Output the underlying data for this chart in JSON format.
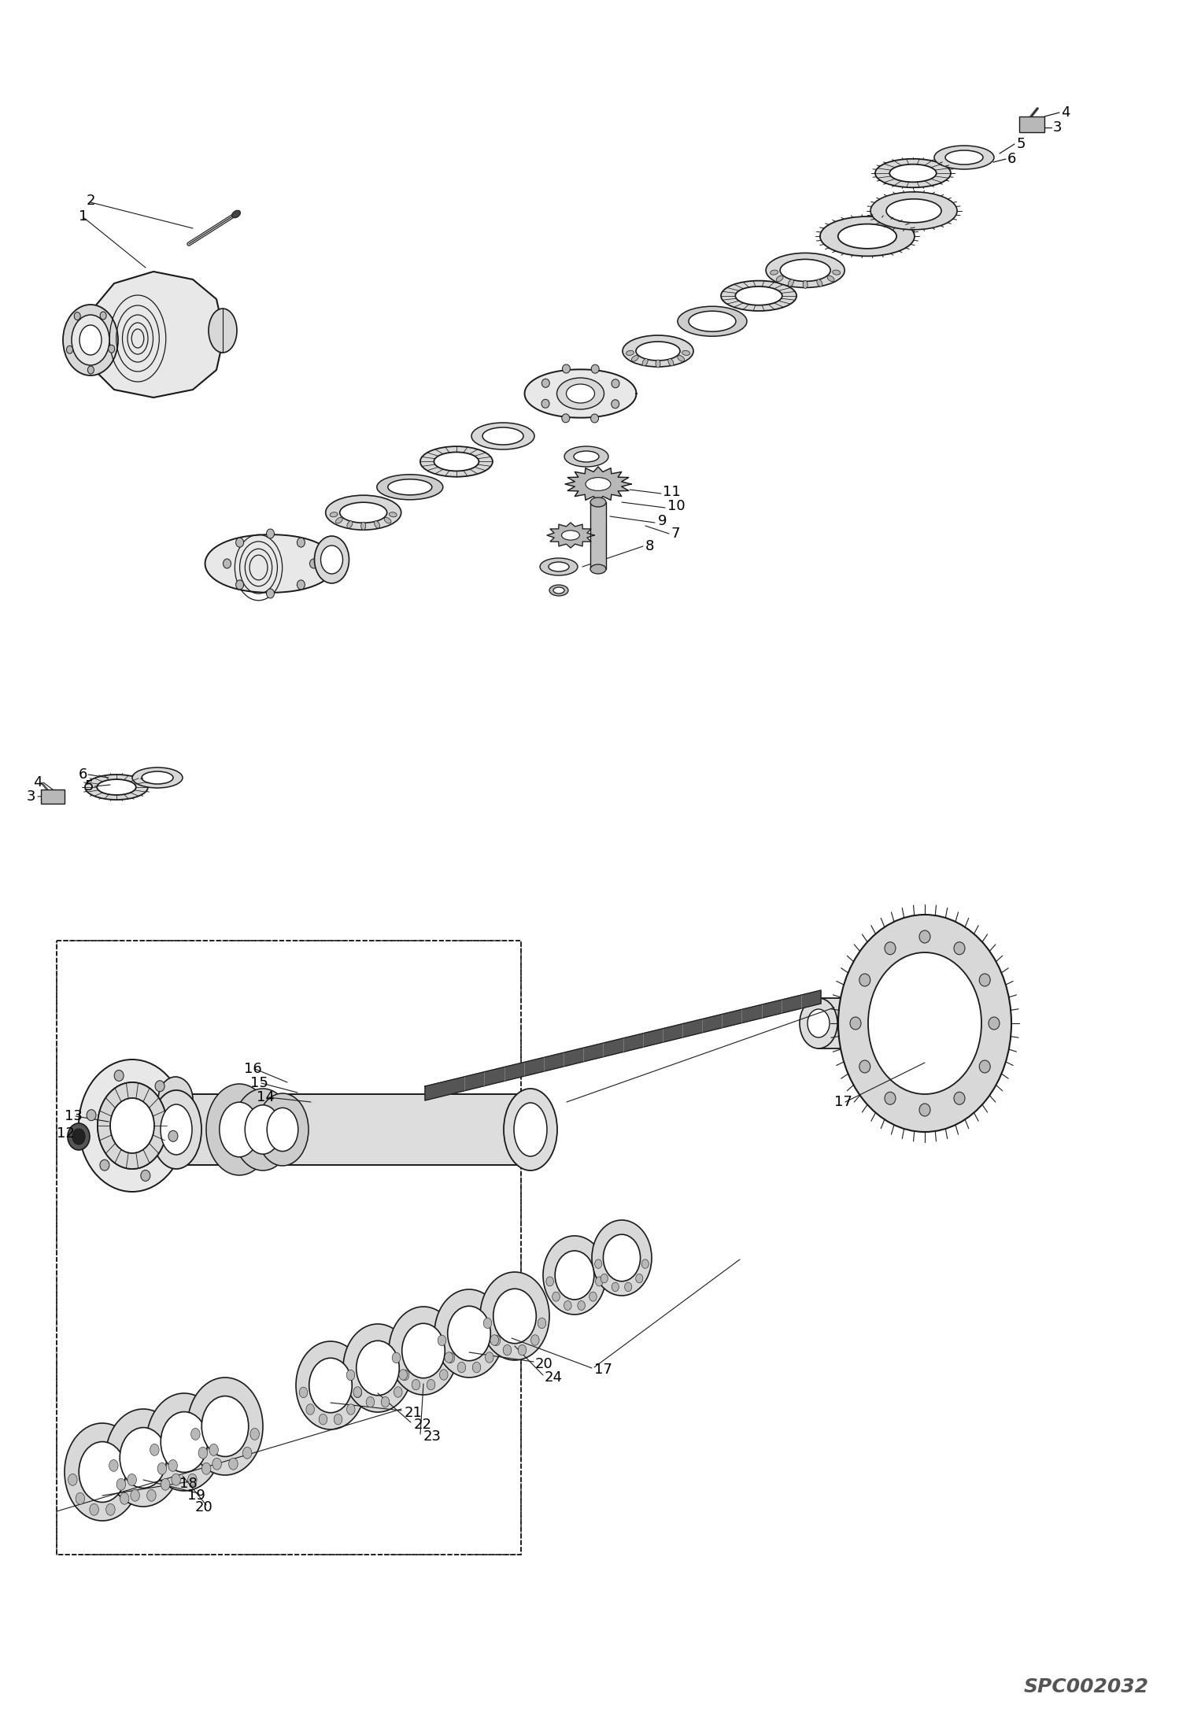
{
  "bg_color": "#ffffff",
  "lc": "#1a1a1a",
  "gray1": "#d8d8d8",
  "gray2": "#b8b8b8",
  "gray3": "#e8e8e8",
  "dark": "#444444",
  "watermark": "SPC002032",
  "figsize": [
    14.98,
    21.94
  ],
  "dpi": 100,
  "lfs": 13
}
